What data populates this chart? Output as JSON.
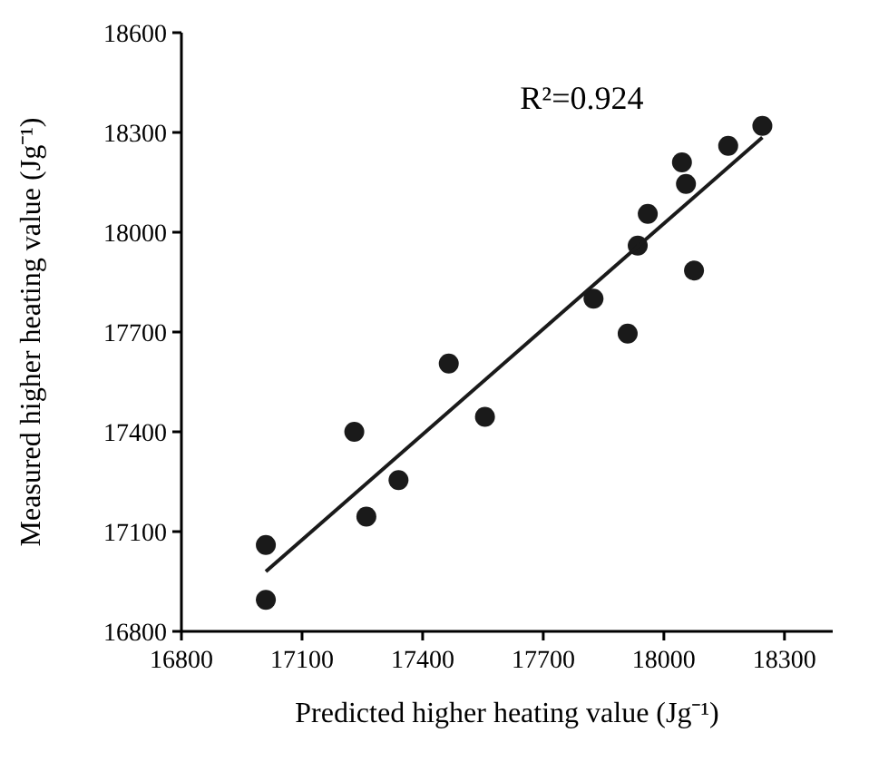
{
  "chart_data": {
    "type": "scatter",
    "xlabel": "Predicted higher heating value (Jg⁻¹)",
    "ylabel": "Measured higher heating value (Jg⁻¹)",
    "xlim": [
      16800,
      18420
    ],
    "xticks": [
      16800,
      17100,
      17400,
      17700,
      18000,
      18300
    ],
    "ylim": [
      16800,
      18600
    ],
    "yticks": [
      16800,
      17100,
      17400,
      17700,
      18000,
      18300,
      18600
    ],
    "grid": false,
    "annotations": [
      "R²=0.924"
    ],
    "series": [
      {
        "marker": "circle",
        "color": "#1a1a1a",
        "x": [
          17010,
          17010,
          17230,
          17260,
          17340,
          17465,
          17555,
          17825,
          17910,
          17935,
          17960,
          18045,
          18055,
          18075,
          18160,
          18245
        ],
        "values": [
          17060,
          16895,
          17400,
          17145,
          17255,
          17605,
          17445,
          17800,
          17695,
          17960,
          18055,
          18210,
          18145,
          17885,
          18260,
          18320
        ]
      },
      {
        "type": "line",
        "color": "#1a1a1a",
        "line_style": "solid",
        "x": [
          17010,
          18245
        ],
        "values": [
          16980,
          18285
        ]
      }
    ]
  }
}
